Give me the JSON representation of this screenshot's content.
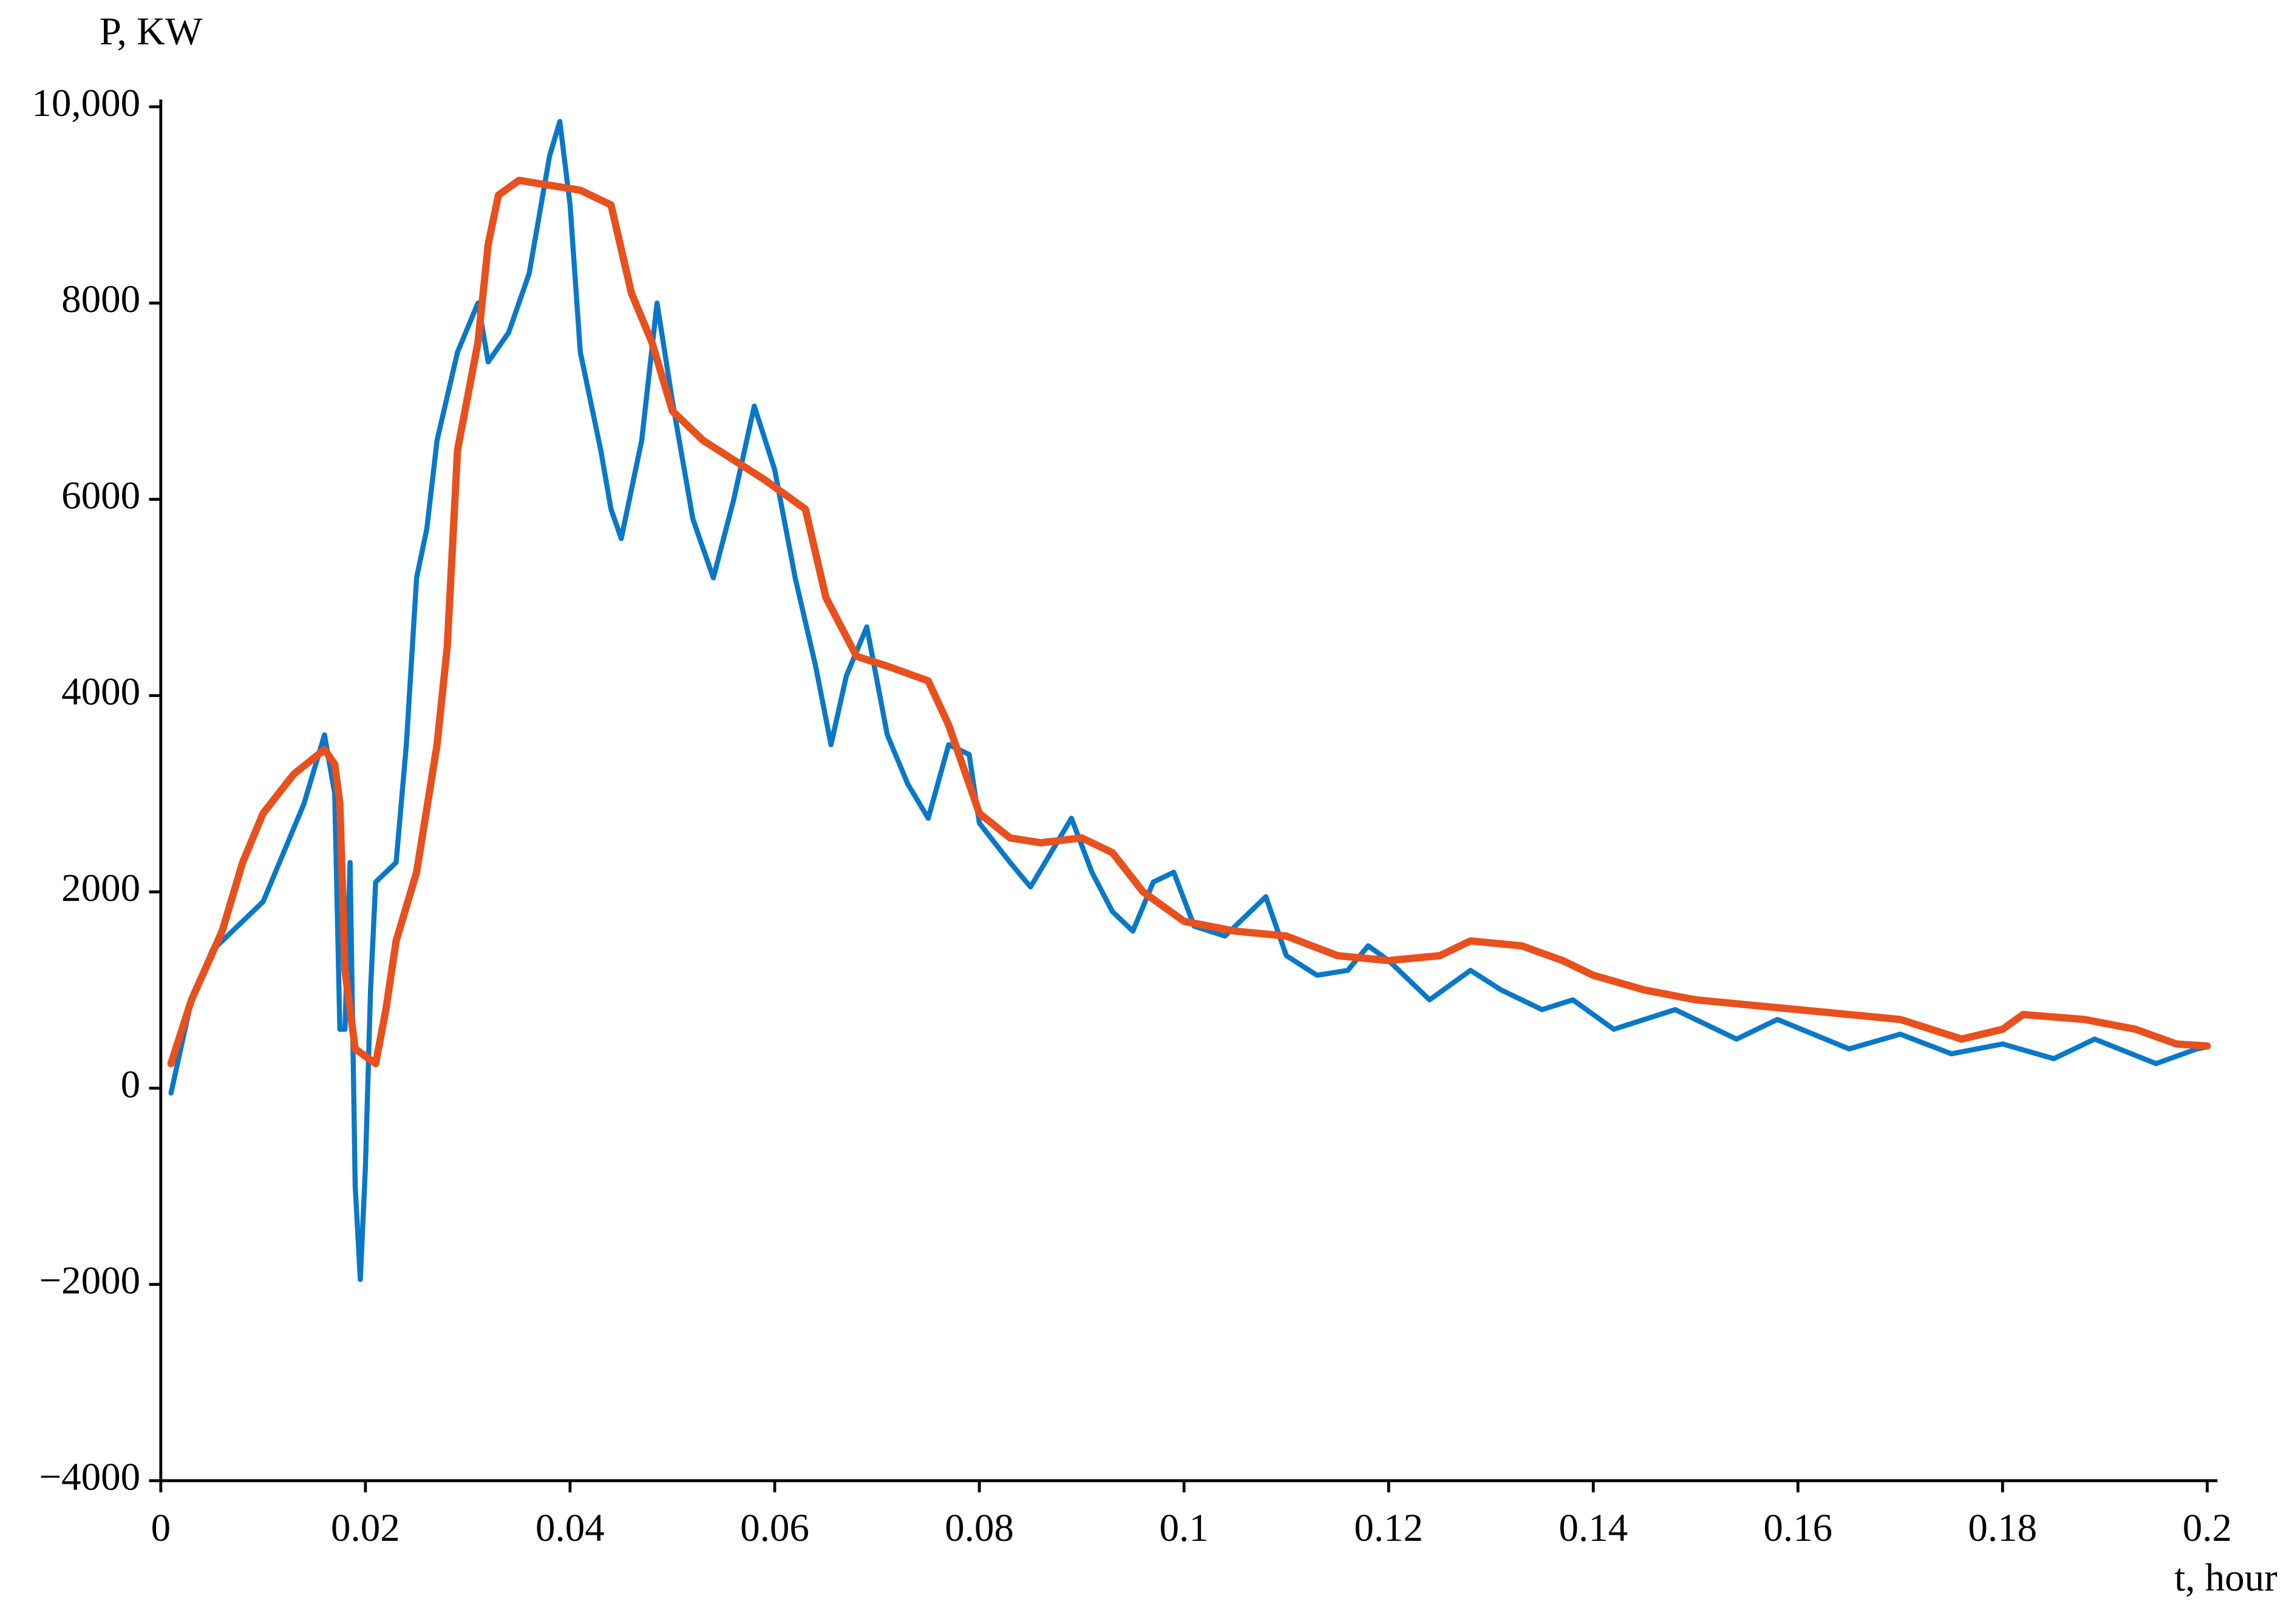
{
  "chart_data": {
    "type": "line",
    "x_label": "t, hour",
    "y_label": "P, KW",
    "xlim": [
      0,
      0.201
    ],
    "ylim": [
      -4000,
      10000
    ],
    "xticks": [
      0,
      0.02,
      0.04,
      0.06,
      0.08,
      0.1,
      0.12,
      0.14,
      0.16,
      0.18,
      0.2
    ],
    "yticks": [
      {
        "value": -4000,
        "label": "−4000"
      },
      {
        "value": -2000,
        "label": "−2000"
      },
      0,
      2000,
      4000,
      6000,
      8000,
      {
        "value": 10000,
        "label": "10,000"
      }
    ],
    "grid": false,
    "series": [
      {
        "color": "#0a78c8",
        "x": [
          0.001,
          0.003,
          0.005,
          0.008,
          0.01,
          0.012,
          0.014,
          0.016,
          0.017,
          0.0175,
          0.018,
          0.0185,
          0.019,
          0.0195,
          0.02,
          0.0205,
          0.021,
          0.023,
          0.024,
          0.025,
          0.026,
          0.027,
          0.029,
          0.031,
          0.032,
          0.034,
          0.036,
          0.038,
          0.039,
          0.04,
          0.041,
          0.043,
          0.044,
          0.045,
          0.047,
          0.0485,
          0.05,
          0.052,
          0.054,
          0.056,
          0.058,
          0.06,
          0.062,
          0.064,
          0.0655,
          0.067,
          0.069,
          0.071,
          0.073,
          0.075,
          0.077,
          0.079,
          0.08,
          0.083,
          0.085,
          0.087,
          0.089,
          0.091,
          0.093,
          0.095,
          0.097,
          0.099,
          0.101,
          0.104,
          0.108,
          0.11,
          0.113,
          0.116,
          0.118,
          0.12,
          0.124,
          0.128,
          0.131,
          0.135,
          0.138,
          0.142,
          0.148,
          0.154,
          0.158,
          0.165,
          0.17,
          0.175,
          0.18,
          0.185,
          0.189,
          0.195,
          0.199,
          0.2
        ],
        "values": [
          -50,
          900,
          1400,
          1700,
          1900,
          2400,
          2900,
          3600,
          3000,
          600,
          600,
          2300,
          -1000,
          -1950,
          -800,
          1000,
          2100,
          2300,
          3500,
          5200,
          5700,
          6600,
          7500,
          8000,
          7400,
          7700,
          8300,
          9500,
          9850,
          9000,
          7500,
          6500,
          5900,
          5600,
          6600,
          8000,
          7000,
          5800,
          5200,
          6000,
          6950,
          6300,
          5200,
          4300,
          3500,
          4200,
          4700,
          3600,
          3100,
          2750,
          3500,
          3400,
          2700,
          2300,
          2050,
          2400,
          2750,
          2200,
          1800,
          1600,
          2100,
          2200,
          1650,
          1550,
          1950,
          1350,
          1150,
          1200,
          1450,
          1300,
          900,
          1200,
          1000,
          800,
          900,
          600,
          800,
          500,
          700,
          400,
          550,
          350,
          450,
          300,
          500,
          250,
          400,
          420
        ]
      },
      {
        "color": "#e8501e",
        "x": [
          0.001,
          0.003,
          0.006,
          0.008,
          0.01,
          0.013,
          0.016,
          0.017,
          0.0175,
          0.018,
          0.019,
          0.021,
          0.022,
          0.023,
          0.025,
          0.027,
          0.028,
          0.029,
          0.031,
          0.032,
          0.033,
          0.035,
          0.038,
          0.041,
          0.044,
          0.046,
          0.048,
          0.05,
          0.053,
          0.056,
          0.059,
          0.063,
          0.065,
          0.068,
          0.071,
          0.075,
          0.077,
          0.079,
          0.08,
          0.083,
          0.086,
          0.09,
          0.093,
          0.096,
          0.1,
          0.105,
          0.11,
          0.115,
          0.12,
          0.125,
          0.128,
          0.133,
          0.137,
          0.14,
          0.145,
          0.15,
          0.16,
          0.17,
          0.176,
          0.18,
          0.182,
          0.188,
          0.193,
          0.197,
          0.2
        ],
        "values": [
          250,
          900,
          1600,
          2300,
          2800,
          3200,
          3450,
          3300,
          2900,
          1200,
          400,
          250,
          800,
          1500,
          2200,
          3500,
          4500,
          6500,
          7600,
          8600,
          9100,
          9250,
          9200,
          9150,
          9000,
          8100,
          7600,
          6900,
          6600,
          6400,
          6200,
          5900,
          5000,
          4400,
          4300,
          4150,
          3700,
          3100,
          2800,
          2550,
          2500,
          2550,
          2400,
          2000,
          1700,
          1600,
          1550,
          1350,
          1300,
          1350,
          1500,
          1450,
          1300,
          1150,
          1000,
          900,
          800,
          700,
          500,
          600,
          750,
          700,
          600,
          450,
          430
        ]
      }
    ]
  }
}
